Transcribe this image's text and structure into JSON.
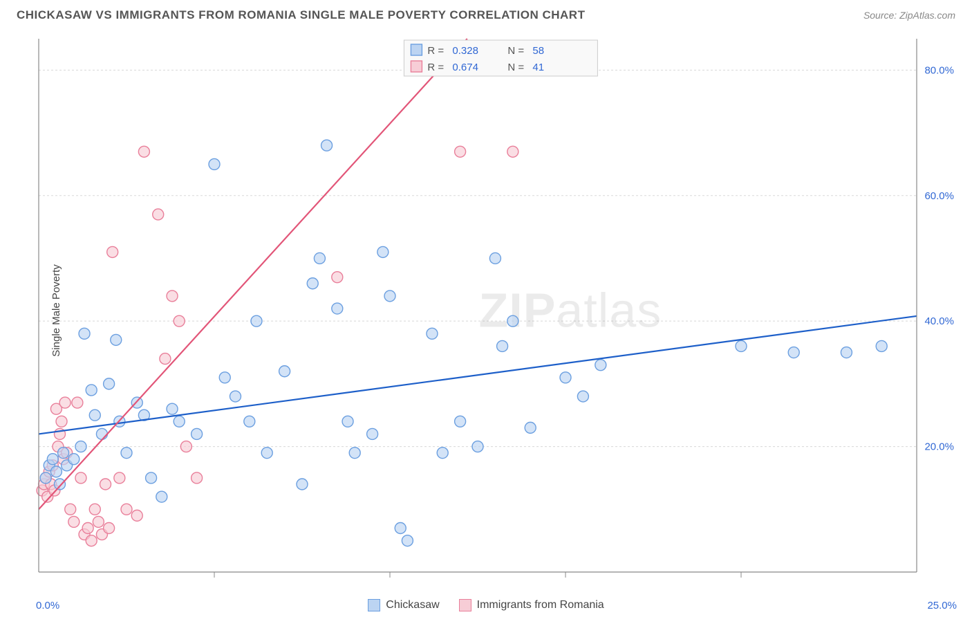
{
  "header": {
    "title": "CHICKASAW VS IMMIGRANTS FROM ROMANIA SINGLE MALE POVERTY CORRELATION CHART",
    "source_prefix": "Source: ",
    "source_link": "ZipAtlas.com"
  },
  "chart": {
    "type": "scatter",
    "ylabel": "Single Male Poverty",
    "xlim": [
      0,
      25
    ],
    "ylim": [
      0,
      85
    ],
    "xtick_positions": [
      5,
      10,
      15,
      20
    ],
    "ytick_values": [
      20,
      40,
      60,
      80
    ],
    "ytick_labels": [
      "20.0%",
      "40.0%",
      "60.0%",
      "80.0%"
    ],
    "x_extent_labels": {
      "left": "0.0%",
      "right": "25.0%"
    },
    "grid_color": "#d8d8d8",
    "axis_color": "#888888",
    "background_color": "#ffffff",
    "marker_radius": 8,
    "marker_stroke_width": 1.4,
    "trend_line_width": 2.2,
    "watermark": "ZIPatlas",
    "series": {
      "a": {
        "label": "Chickasaw",
        "fill": "#bcd4f2",
        "stroke": "#6b9fe0",
        "line_color": "#1d5fc9",
        "R": "0.328",
        "N": "58",
        "trend": {
          "x0": 0,
          "y0": 22.0,
          "x1": 25,
          "y1": 40.8
        },
        "points": [
          [
            0.2,
            15
          ],
          [
            0.3,
            17
          ],
          [
            0.4,
            18
          ],
          [
            0.5,
            16
          ],
          [
            0.6,
            14
          ],
          [
            0.7,
            19
          ],
          [
            0.8,
            17
          ],
          [
            1.0,
            18
          ],
          [
            1.2,
            20
          ],
          [
            1.3,
            38
          ],
          [
            1.5,
            29
          ],
          [
            1.6,
            25
          ],
          [
            1.8,
            22
          ],
          [
            2.0,
            30
          ],
          [
            2.2,
            37
          ],
          [
            2.3,
            24
          ],
          [
            2.5,
            19
          ],
          [
            2.8,
            27
          ],
          [
            3.0,
            25
          ],
          [
            3.2,
            15
          ],
          [
            3.5,
            12
          ],
          [
            3.8,
            26
          ],
          [
            4.0,
            24
          ],
          [
            4.5,
            22
          ],
          [
            5.0,
            65
          ],
          [
            5.3,
            31
          ],
          [
            5.6,
            28
          ],
          [
            6.0,
            24
          ],
          [
            6.2,
            40
          ],
          [
            6.5,
            19
          ],
          [
            7.0,
            32
          ],
          [
            7.5,
            14
          ],
          [
            7.8,
            46
          ],
          [
            8.0,
            50
          ],
          [
            8.2,
            68
          ],
          [
            8.5,
            42
          ],
          [
            8.8,
            24
          ],
          [
            9.0,
            19
          ],
          [
            9.5,
            22
          ],
          [
            9.8,
            51
          ],
          [
            10.0,
            44
          ],
          [
            10.3,
            7
          ],
          [
            10.5,
            5
          ],
          [
            11.2,
            38
          ],
          [
            11.5,
            19
          ],
          [
            12.0,
            24
          ],
          [
            12.5,
            20
          ],
          [
            13.0,
            50
          ],
          [
            13.2,
            36
          ],
          [
            13.5,
            40
          ],
          [
            14.0,
            23
          ],
          [
            15.0,
            31
          ],
          [
            15.5,
            28
          ],
          [
            16.0,
            33
          ],
          [
            20.0,
            36
          ],
          [
            21.5,
            35
          ],
          [
            23.0,
            35
          ],
          [
            24.0,
            36
          ]
        ]
      },
      "b": {
        "label": "Immigrants from Romania",
        "fill": "#f7cdd6",
        "stroke": "#e97f9a",
        "line_color": "#e25578",
        "R": "0.674",
        "N": "41",
        "trend": {
          "x0": 0,
          "y0": 10.0,
          "x1": 12.2,
          "y1": 85.0
        },
        "points": [
          [
            0.1,
            13
          ],
          [
            0.15,
            14
          ],
          [
            0.2,
            15
          ],
          [
            0.25,
            12
          ],
          [
            0.3,
            16
          ],
          [
            0.35,
            14
          ],
          [
            0.4,
            17
          ],
          [
            0.45,
            13
          ],
          [
            0.5,
            26
          ],
          [
            0.55,
            20
          ],
          [
            0.6,
            22
          ],
          [
            0.65,
            24
          ],
          [
            0.7,
            18
          ],
          [
            0.75,
            27
          ],
          [
            0.8,
            19
          ],
          [
            0.9,
            10
          ],
          [
            1.0,
            8
          ],
          [
            1.1,
            27
          ],
          [
            1.2,
            15
          ],
          [
            1.3,
            6
          ],
          [
            1.4,
            7
          ],
          [
            1.5,
            5
          ],
          [
            1.6,
            10
          ],
          [
            1.7,
            8
          ],
          [
            1.8,
            6
          ],
          [
            1.9,
            14
          ],
          [
            2.0,
            7
          ],
          [
            2.1,
            51
          ],
          [
            2.3,
            15
          ],
          [
            2.5,
            10
          ],
          [
            2.8,
            9
          ],
          [
            3.0,
            67
          ],
          [
            3.4,
            57
          ],
          [
            3.6,
            34
          ],
          [
            3.8,
            44
          ],
          [
            4.0,
            40
          ],
          [
            4.2,
            20
          ],
          [
            4.5,
            15
          ],
          [
            8.5,
            47
          ],
          [
            12.0,
            67
          ],
          [
            13.5,
            67
          ]
        ]
      }
    },
    "correlation_box": {
      "bg": "#f9f9f9",
      "border": "#cccccc",
      "text_color": "#555555",
      "value_color": "#3168d4"
    }
  },
  "bottom_legend": {
    "a_label": "Chickasaw",
    "b_label": "Immigrants from Romania"
  }
}
